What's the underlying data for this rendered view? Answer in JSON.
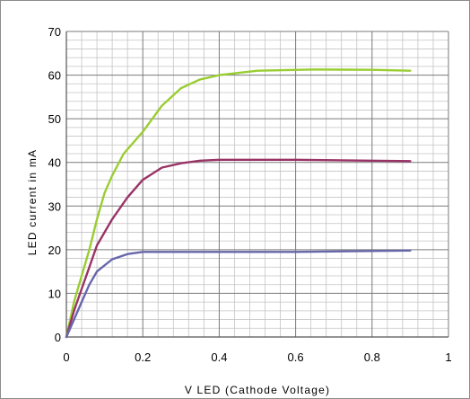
{
  "chart_data": {
    "type": "line",
    "title": "",
    "xlabel": "V LED (Cathode Voltage)",
    "ylabel": "LED current in mA",
    "xlim": [
      0,
      1
    ],
    "ylim": [
      0,
      70
    ],
    "x_ticks": [
      "0",
      "0.2",
      "0.4",
      "0.6",
      "0.8",
      "1"
    ],
    "y_ticks": [
      "0",
      "10",
      "20",
      "30",
      "40",
      "50",
      "60",
      "70"
    ],
    "grid": true,
    "legend": "none",
    "series": [
      {
        "color": "#9acd32",
        "points": [
          [
            0,
            0
          ],
          [
            0.02,
            8
          ],
          [
            0.04,
            14
          ],
          [
            0.06,
            20
          ],
          [
            0.08,
            27
          ],
          [
            0.1,
            33
          ],
          [
            0.12,
            37
          ],
          [
            0.15,
            42
          ],
          [
            0.2,
            47
          ],
          [
            0.25,
            53
          ],
          [
            0.3,
            57
          ],
          [
            0.35,
            59
          ],
          [
            0.4,
            60
          ],
          [
            0.5,
            61
          ],
          [
            0.65,
            61.3
          ],
          [
            0.8,
            61.2
          ],
          [
            0.9,
            61
          ]
        ]
      },
      {
        "color": "#993366",
        "points": [
          [
            0,
            0
          ],
          [
            0.02,
            6
          ],
          [
            0.04,
            11
          ],
          [
            0.06,
            16
          ],
          [
            0.08,
            21
          ],
          [
            0.12,
            27
          ],
          [
            0.16,
            32
          ],
          [
            0.2,
            36
          ],
          [
            0.25,
            38.8
          ],
          [
            0.3,
            39.8
          ],
          [
            0.35,
            40.4
          ],
          [
            0.4,
            40.6
          ],
          [
            0.6,
            40.6
          ],
          [
            0.9,
            40.3
          ]
        ]
      },
      {
        "color": "#6666aa",
        "points": [
          [
            0,
            0
          ],
          [
            0.02,
            4
          ],
          [
            0.04,
            8
          ],
          [
            0.06,
            12
          ],
          [
            0.08,
            15
          ],
          [
            0.12,
            17.8
          ],
          [
            0.16,
            19
          ],
          [
            0.2,
            19.5
          ],
          [
            0.4,
            19.5
          ],
          [
            0.6,
            19.5
          ],
          [
            0.9,
            19.8
          ]
        ]
      }
    ]
  }
}
